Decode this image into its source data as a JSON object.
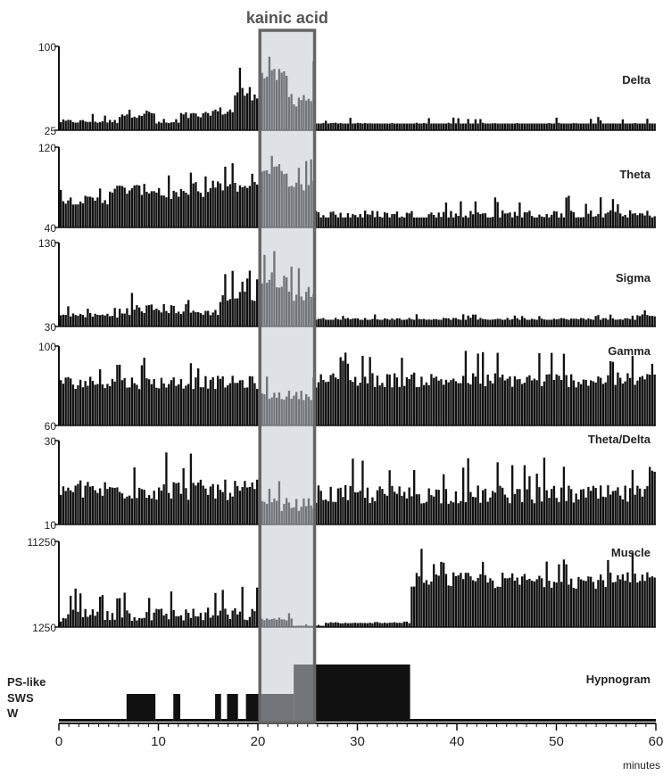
{
  "chart_data": {
    "type": "bar",
    "annotation": {
      "label": "kainic acid",
      "x_start": 20.2,
      "x_end": 25.7,
      "fill": "#c6c9d4",
      "stroke": "#666666"
    },
    "x_axis": {
      "range": [
        0,
        60
      ],
      "ticks": [
        "0",
        "10",
        "20",
        "30",
        "40",
        "50",
        "60"
      ],
      "label": "minutes"
    },
    "bar_color": "#111111",
    "series": [
      {
        "name": "Delta",
        "ymin_label": "25",
        "ymax_label": "100",
        "ylim": [
          25,
          100
        ],
        "baseline": 31,
        "segments": [
          {
            "x0": 0,
            "x1": 6,
            "level": 32,
            "max": 40
          },
          {
            "x0": 6,
            "x1": 9.5,
            "level": 38,
            "max": 55
          },
          {
            "x0": 9.5,
            "x1": 12,
            "level": 31,
            "max": 36
          },
          {
            "x0": 12,
            "x1": 15,
            "level": 36,
            "max": 52
          },
          {
            "x0": 15,
            "x1": 17.5,
            "level": 40,
            "max": 58
          },
          {
            "x0": 17.5,
            "x1": 20.2,
            "level": 55,
            "max": 85
          },
          {
            "x0": 20.2,
            "x1": 23,
            "level": 70,
            "max": 100
          },
          {
            "x0": 23,
            "x1": 25.7,
            "level": 50,
            "max": 88
          },
          {
            "x0": 25.7,
            "x1": 60,
            "level": 29,
            "max": 37
          }
        ]
      },
      {
        "name": "Theta",
        "ymin_label": "40",
        "ymax_label": "120",
        "ylim": [
          40,
          120
        ],
        "baseline": 50,
        "segments": [
          {
            "x0": 0,
            "x1": 5,
            "level": 65,
            "max": 85
          },
          {
            "x0": 5,
            "x1": 10,
            "level": 75,
            "max": 100
          },
          {
            "x0": 10,
            "x1": 15,
            "level": 70,
            "max": 95
          },
          {
            "x0": 15,
            "x1": 20.2,
            "level": 78,
            "max": 105
          },
          {
            "x0": 20.2,
            "x1": 23,
            "level": 95,
            "max": 120
          },
          {
            "x0": 23,
            "x1": 25.7,
            "level": 80,
            "max": 110
          },
          {
            "x0": 25.7,
            "x1": 60,
            "level": 50,
            "max": 72
          }
        ]
      },
      {
        "name": "Sigma",
        "ymin_label": "30",
        "ymax_label": "130",
        "ylim": [
          30,
          130
        ],
        "baseline": 38,
        "segments": [
          {
            "x0": 0,
            "x1": 7,
            "level": 42,
            "max": 55
          },
          {
            "x0": 7,
            "x1": 12,
            "level": 48,
            "max": 75
          },
          {
            "x0": 12,
            "x1": 16,
            "level": 45,
            "max": 62
          },
          {
            "x0": 16,
            "x1": 20.2,
            "level": 60,
            "max": 100
          },
          {
            "x0": 20.2,
            "x1": 23,
            "level": 80,
            "max": 125
          },
          {
            "x0": 23,
            "x1": 25.7,
            "level": 65,
            "max": 105
          },
          {
            "x0": 25.7,
            "x1": 58,
            "level": 38,
            "max": 45
          },
          {
            "x0": 58,
            "x1": 60,
            "level": 42,
            "max": 50
          }
        ]
      },
      {
        "name": "Gamma",
        "ymin_label": "60",
        "ymax_label": "100",
        "ylim": [
          60,
          100
        ],
        "baseline": 72,
        "segments": [
          {
            "x0": 0,
            "x1": 20.2,
            "level": 80,
            "max": 95
          },
          {
            "x0": 20.2,
            "x1": 25.7,
            "level": 74,
            "max": 85
          },
          {
            "x0": 25.7,
            "x1": 60,
            "level": 81,
            "max": 98
          }
        ]
      },
      {
        "name": "Theta/Delta",
        "ymin_label": "10",
        "ymax_label": "30",
        "ylim": [
          10,
          30
        ],
        "baseline": 13,
        "segments": [
          {
            "x0": 0,
            "x1": 20.2,
            "level": 17,
            "max": 28
          },
          {
            "x0": 20.2,
            "x1": 25.7,
            "level": 14,
            "max": 21
          },
          {
            "x0": 25.7,
            "x1": 60,
            "level": 16,
            "max": 26
          }
        ]
      },
      {
        "name": "Muscle",
        "ymin_label": "1250",
        "ymax_label": "11250",
        "ylim": [
          1250,
          11250
        ],
        "baseline": 1400,
        "segments": [
          {
            "x0": 0,
            "x1": 20.2,
            "level": 2300,
            "max": 6000
          },
          {
            "x0": 20.2,
            "x1": 23.5,
            "level": 2100,
            "max": 2900
          },
          {
            "x0": 23.5,
            "x1": 26.5,
            "level": 1350,
            "max": 1600
          },
          {
            "x0": 26.5,
            "x1": 35.3,
            "level": 1700,
            "max": 1900
          },
          {
            "x0": 35.3,
            "x1": 60,
            "level": 6200,
            "max": 10500
          }
        ]
      }
    ],
    "hypnogram": {
      "name": "Hypnogram",
      "states": [
        "PS-like",
        "SWS",
        "W"
      ],
      "epochs": [
        {
          "x0": 0,
          "x1": 6.8,
          "state": "W"
        },
        {
          "x0": 6.8,
          "x1": 9.7,
          "state": "SWS"
        },
        {
          "x0": 9.7,
          "x1": 11.5,
          "state": "W"
        },
        {
          "x0": 11.5,
          "x1": 12.2,
          "state": "SWS"
        },
        {
          "x0": 12.2,
          "x1": 15.7,
          "state": "W"
        },
        {
          "x0": 15.7,
          "x1": 16.3,
          "state": "SWS"
        },
        {
          "x0": 16.3,
          "x1": 16.9,
          "state": "W"
        },
        {
          "x0": 16.9,
          "x1": 18.0,
          "state": "SWS"
        },
        {
          "x0": 18.0,
          "x1": 18.8,
          "state": "W"
        },
        {
          "x0": 18.8,
          "x1": 23.6,
          "state": "SWS"
        },
        {
          "x0": 23.6,
          "x1": 35.3,
          "state": "PS-like"
        },
        {
          "x0": 35.3,
          "x1": 60,
          "state": "W"
        }
      ]
    }
  }
}
